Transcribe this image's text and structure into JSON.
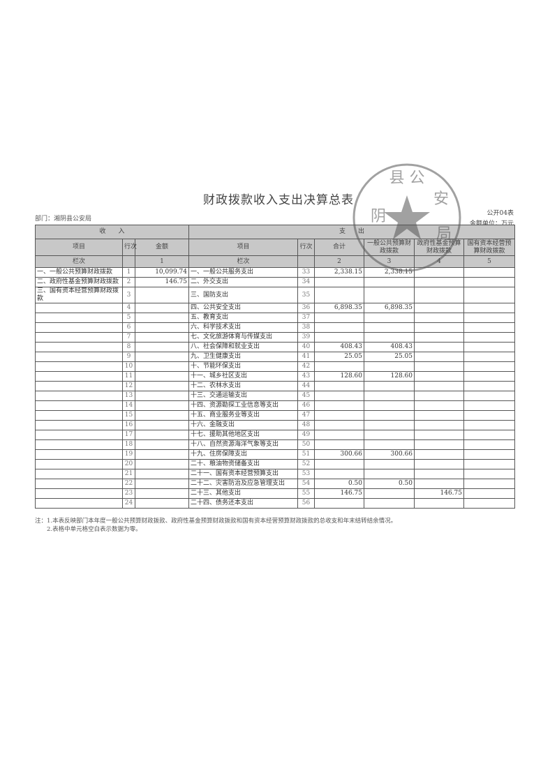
{
  "title": "财政拨款收入支出决算总表",
  "department": "部门：湘阴县公安局",
  "form_no": "公开04表",
  "unit": "金额单位：万元",
  "header": {
    "income": "收　　入",
    "expense": "支　　出",
    "item": "项目",
    "line": "行次",
    "amount": "金额",
    "total": "合计",
    "general": "一般公共预算财政拨款",
    "gov_fund": "政府性基金预算财政拨款",
    "state_capital": "国有资本经营预算财政拨款",
    "col_label": "栏次",
    "c1": "1",
    "c2": "2",
    "c3": "3",
    "c4": "4",
    "c5": "5"
  },
  "rows": [
    {
      "li": "一、一般公共预算财政拨款",
      "ll": "1",
      "la": "10,099.74",
      "ri": "一、一般公共服务支出",
      "rl": "33",
      "t": "2,338.15",
      "g": "2,338.15",
      "f": "",
      "s": ""
    },
    {
      "li": "二、政府性基金预算财政拨款",
      "ll": "2",
      "la": "146.75",
      "ri": "二、外交支出",
      "rl": "34",
      "t": "",
      "g": "",
      "f": "",
      "s": ""
    },
    {
      "li": "三、国有资本经营预算财政拨款",
      "ll": "3",
      "la": "",
      "ri": "三、国防支出",
      "rl": "35",
      "t": "",
      "g": "",
      "f": "",
      "s": ""
    },
    {
      "li": "",
      "ll": "4",
      "la": "",
      "ri": "四、公共安全支出",
      "rl": "36",
      "t": "6,898.35",
      "g": "6,898.35",
      "f": "",
      "s": ""
    },
    {
      "li": "",
      "ll": "5",
      "la": "",
      "ri": "五、教育支出",
      "rl": "37",
      "t": "",
      "g": "",
      "f": "",
      "s": ""
    },
    {
      "li": "",
      "ll": "6",
      "la": "",
      "ri": "六、科学技术支出",
      "rl": "38",
      "t": "",
      "g": "",
      "f": "",
      "s": ""
    },
    {
      "li": "",
      "ll": "7",
      "la": "",
      "ri": "七、文化旅游体育与传媒支出",
      "rl": "39",
      "t": "",
      "g": "",
      "f": "",
      "s": ""
    },
    {
      "li": "",
      "ll": "8",
      "la": "",
      "ri": "八、社会保障和就业支出",
      "rl": "40",
      "t": "408.43",
      "g": "408.43",
      "f": "",
      "s": ""
    },
    {
      "li": "",
      "ll": "9",
      "la": "",
      "ri": "九、卫生健康支出",
      "rl": "41",
      "t": "25.05",
      "g": "25.05",
      "f": "",
      "s": ""
    },
    {
      "li": "",
      "ll": "10",
      "la": "",
      "ri": "十、节能环保支出",
      "rl": "42",
      "t": "",
      "g": "",
      "f": "",
      "s": ""
    },
    {
      "li": "",
      "ll": "11",
      "la": "",
      "ri": "十一、城乡社区支出",
      "rl": "43",
      "t": "128.60",
      "g": "128.60",
      "f": "",
      "s": ""
    },
    {
      "li": "",
      "ll": "12",
      "la": "",
      "ri": "十二、农林水支出",
      "rl": "44",
      "t": "",
      "g": "",
      "f": "",
      "s": ""
    },
    {
      "li": "",
      "ll": "13",
      "la": "",
      "ri": "十三、交通运输支出",
      "rl": "45",
      "t": "",
      "g": "",
      "f": "",
      "s": ""
    },
    {
      "li": "",
      "ll": "14",
      "la": "",
      "ri": "十四、资源勘探工业信息等支出",
      "rl": "46",
      "t": "",
      "g": "",
      "f": "",
      "s": ""
    },
    {
      "li": "",
      "ll": "15",
      "la": "",
      "ri": "十五、商业服务业等支出",
      "rl": "47",
      "t": "",
      "g": "",
      "f": "",
      "s": ""
    },
    {
      "li": "",
      "ll": "16",
      "la": "",
      "ri": "十六、金融支出",
      "rl": "48",
      "t": "",
      "g": "",
      "f": "",
      "s": ""
    },
    {
      "li": "",
      "ll": "17",
      "la": "",
      "ri": "十七、援助其他地区支出",
      "rl": "49",
      "t": "",
      "g": "",
      "f": "",
      "s": ""
    },
    {
      "li": "",
      "ll": "18",
      "la": "",
      "ri": "十八、自然资源海洋气象等支出",
      "rl": "50",
      "t": "",
      "g": "",
      "f": "",
      "s": ""
    },
    {
      "li": "",
      "ll": "19",
      "la": "",
      "ri": "十九、住房保障支出",
      "rl": "51",
      "t": "300.66",
      "g": "300.66",
      "f": "",
      "s": ""
    },
    {
      "li": "",
      "ll": "20",
      "la": "",
      "ri": "二十、粮油物资储备支出",
      "rl": "52",
      "t": "",
      "g": "",
      "f": "",
      "s": ""
    },
    {
      "li": "",
      "ll": "21",
      "la": "",
      "ri": "二十一、国有资本经营预算支出",
      "rl": "53",
      "t": "",
      "g": "",
      "f": "",
      "s": ""
    },
    {
      "li": "",
      "ll": "22",
      "la": "",
      "ri": "二十二、灾害防治及应急管理支出",
      "rl": "54",
      "t": "0.50",
      "g": "0.50",
      "f": "",
      "s": ""
    },
    {
      "li": "",
      "ll": "23",
      "la": "",
      "ri": "二十三、其他支出",
      "rl": "55",
      "t": "146.75",
      "g": "",
      "f": "146.75",
      "s": ""
    },
    {
      "li": "",
      "ll": "24",
      "la": "",
      "ri": "二十四、债务还本支出",
      "rl": "56",
      "t": "",
      "g": "",
      "f": "",
      "s": ""
    }
  ],
  "notes": [
    "注：1.本表反映部门本年度一般公共预算财政拨款、政府性基金预算财政拨款和国有资本经营预算财政拨款的总收支和年末结转结余情况。",
    "　　2.表格中单元格空白表示数据为零。"
  ],
  "stamp": {
    "text": "湘阴县公安局",
    "color": "#555555"
  }
}
